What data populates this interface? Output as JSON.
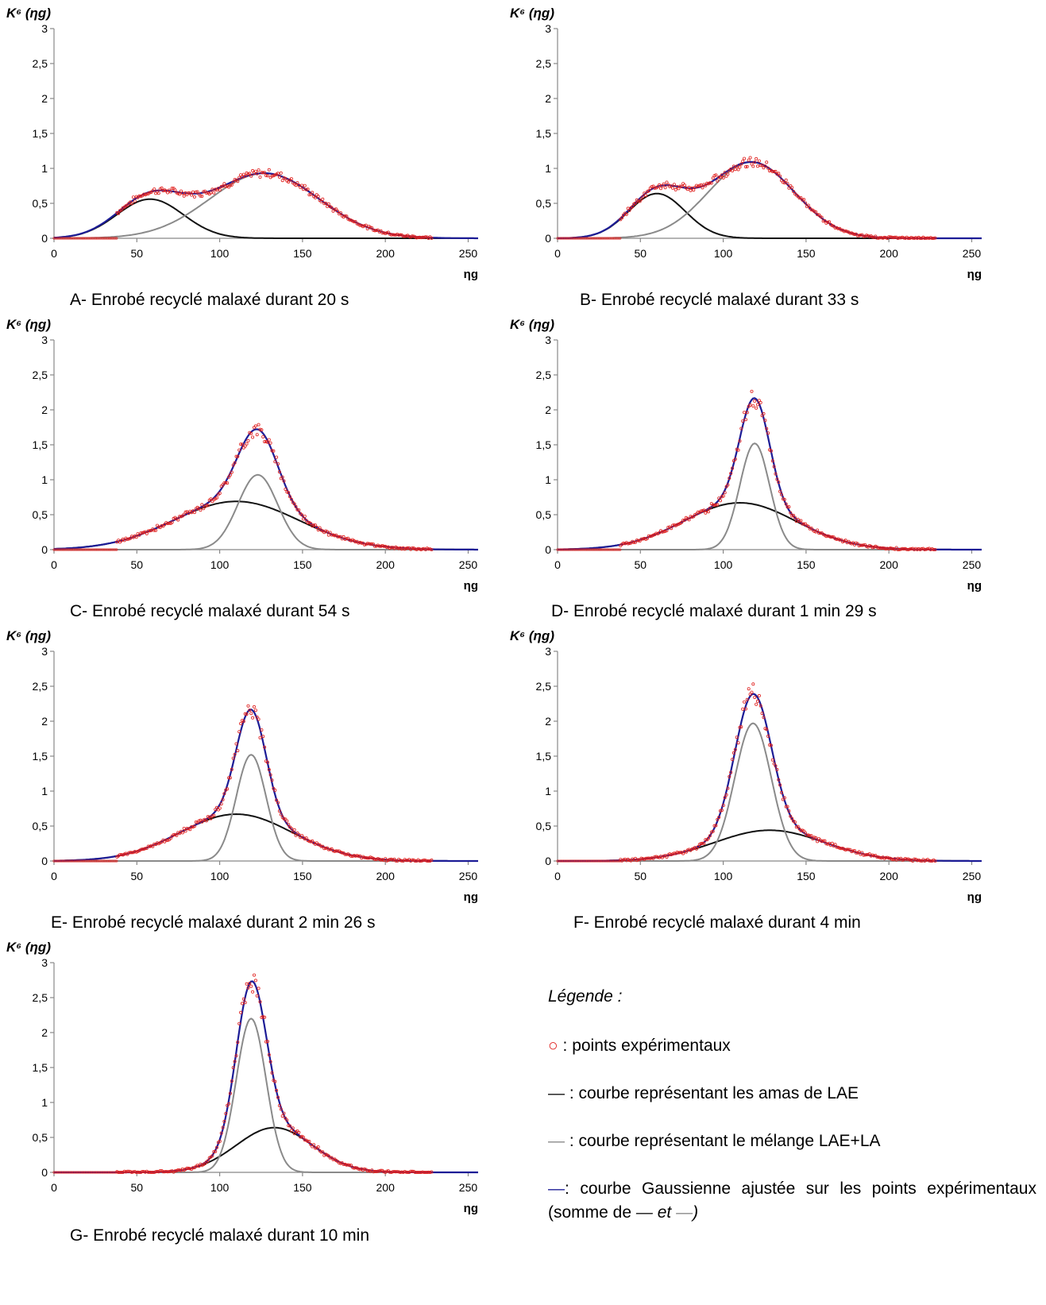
{
  "colors": {
    "points": "#e0201e",
    "lae_curve": "#111111",
    "mix_curve": "#8a8a8a",
    "fit_curve": "#1c1c96",
    "axis": "#888888"
  },
  "chart_data": [
    {
      "type": "line",
      "ylabel": "K⁶ (ηg)",
      "xlabel": "ηg",
      "xlim": [
        0,
        256
      ],
      "ylim": [
        0,
        3
      ],
      "xticks": [
        0,
        50,
        100,
        150,
        200,
        250
      ],
      "xtick_labels": [
        "0",
        "50",
        "100",
        "150",
        "200",
        "250"
      ],
      "yticks": [
        0,
        0.5,
        1,
        1.5,
        2,
        2.5,
        3
      ],
      "ytick_labels": [
        "0",
        "0,5",
        "1",
        "1,5",
        "2",
        "2,5",
        "3"
      ],
      "caption": "A- Enrobé recyclé malaxé durant 20 s",
      "components": [
        {
          "amplitude": 0.56,
          "center": 58,
          "sigma": 20
        },
        {
          "amplitude": 0.93,
          "center": 127,
          "sigma": 33
        }
      ],
      "points_x_range": [
        38,
        228
      ]
    },
    {
      "type": "line",
      "ylabel": "K⁶ (ηg)",
      "xlabel": "ηg",
      "xlim": [
        0,
        256
      ],
      "ylim": [
        0,
        3
      ],
      "xticks": [
        0,
        50,
        100,
        150,
        200,
        250
      ],
      "xtick_labels": [
        "0",
        "50",
        "100",
        "150",
        "200",
        "250"
      ],
      "yticks": [
        0,
        0.5,
        1,
        1.5,
        2,
        2.5,
        3
      ],
      "ytick_labels": [
        "0",
        "0,5",
        "1",
        "1,5",
        "2",
        "2,5",
        "3"
      ],
      "caption": "B- Enrobé recyclé malaxé durant 33 s",
      "components": [
        {
          "amplitude": 0.64,
          "center": 60,
          "sigma": 17
        },
        {
          "amplitude": 1.09,
          "center": 117,
          "sigma": 26
        }
      ],
      "points_x_range": [
        38,
        228
      ]
    },
    {
      "type": "line",
      "ylabel": "K⁶ (ηg)",
      "xlabel": "ηg",
      "xlim": [
        0,
        256
      ],
      "ylim": [
        0,
        3
      ],
      "xticks": [
        0,
        50,
        100,
        150,
        200,
        250
      ],
      "xtick_labels": [
        "0",
        "50",
        "100",
        "150",
        "200",
        "250"
      ],
      "yticks": [
        0,
        0.5,
        1,
        1.5,
        2,
        2.5,
        3
      ],
      "ytick_labels": [
        "0",
        "0,5",
        "1",
        "1,5",
        "2",
        "2,5",
        "3"
      ],
      "caption": "C- Enrobé recyclé malaxé durant 54 s",
      "components": [
        {
          "amplitude": 0.69,
          "center": 110,
          "sigma": 38
        },
        {
          "amplitude": 1.07,
          "center": 123,
          "sigma": 12
        }
      ],
      "points_x_range": [
        38,
        228
      ]
    },
    {
      "type": "line",
      "ylabel": "K⁶ (ηg)",
      "xlabel": "ηg",
      "xlim": [
        0,
        256
      ],
      "ylim": [
        0,
        3
      ],
      "xticks": [
        0,
        50,
        100,
        150,
        200,
        250
      ],
      "xtick_labels": [
        "0",
        "50",
        "100",
        "150",
        "200",
        "250"
      ],
      "yticks": [
        0,
        0.5,
        1,
        1.5,
        2,
        2.5,
        3
      ],
      "ytick_labels": [
        "0",
        "0,5",
        "1",
        "1,5",
        "2",
        "2,5",
        "3"
      ],
      "caption": "D- Enrobé recyclé malaxé durant 1 min 29 s",
      "components": [
        {
          "amplitude": 0.67,
          "center": 110,
          "sigma": 34
        },
        {
          "amplitude": 1.52,
          "center": 119,
          "sigma": 9
        }
      ],
      "points_x_range": [
        38,
        228
      ]
    },
    {
      "type": "line",
      "ylabel": "K⁶ (ηg)",
      "xlabel": "ηg",
      "xlim": [
        0,
        256
      ],
      "ylim": [
        0,
        3
      ],
      "xticks": [
        0,
        50,
        100,
        150,
        200,
        250
      ],
      "xtick_labels": [
        "0",
        "50",
        "100",
        "150",
        "200",
        "250"
      ],
      "yticks": [
        0,
        0.5,
        1,
        1.5,
        2,
        2.5,
        3
      ],
      "ytick_labels": [
        "0",
        "0,5",
        "1",
        "1,5",
        "2",
        "2,5",
        "3"
      ],
      "caption": "E- Enrobé recyclé malaxé durant 2 min 26 s",
      "components": [
        {
          "amplitude": 0.67,
          "center": 110,
          "sigma": 34
        },
        {
          "amplitude": 1.52,
          "center": 119,
          "sigma": 9
        }
      ],
      "points_x_range": [
        38,
        228
      ]
    },
    {
      "type": "line",
      "ylabel": "K⁶ (ηg)",
      "xlabel": "ηg",
      "xlim": [
        0,
        256
      ],
      "ylim": [
        0,
        3
      ],
      "xticks": [
        0,
        50,
        100,
        150,
        200,
        250
      ],
      "xtick_labels": [
        "0",
        "50",
        "100",
        "150",
        "200",
        "250"
      ],
      "yticks": [
        0,
        0.5,
        1,
        1.5,
        2,
        2.5,
        3
      ],
      "ytick_labels": [
        "0",
        "0,5",
        "1",
        "1,5",
        "2",
        "2,5",
        "3"
      ],
      "caption": "F- Enrobé recyclé malaxé durant 4 min",
      "components": [
        {
          "amplitude": 0.44,
          "center": 128,
          "sigma": 33
        },
        {
          "amplitude": 1.97,
          "center": 118,
          "sigma": 11
        }
      ],
      "points_x_range": [
        38,
        228
      ]
    },
    {
      "type": "line",
      "ylabel": "K⁶ (ηg)",
      "xlabel": "ηg",
      "xlim": [
        0,
        256
      ],
      "ylim": [
        0,
        3
      ],
      "xticks": [
        0,
        50,
        100,
        150,
        200,
        250
      ],
      "xtick_labels": [
        "0",
        "50",
        "100",
        "150",
        "200",
        "250"
      ],
      "yticks": [
        0,
        0.5,
        1,
        1.5,
        2,
        2.5,
        3
      ],
      "ytick_labels": [
        "0",
        "0,5",
        "1",
        "1,5",
        "2",
        "2,5",
        "3"
      ],
      "caption": "G- Enrobé recyclé malaxé durant 10 min",
      "components": [
        {
          "amplitude": 0.64,
          "center": 133,
          "sigma": 23
        },
        {
          "amplitude": 2.2,
          "center": 119,
          "sigma": 9
        }
      ],
      "points_x_range": [
        38,
        228
      ]
    }
  ],
  "legend": {
    "title": "Légende :",
    "points_symbol": "○",
    "points_text": " : points expérimentaux",
    "lae_symbol": "—",
    "lae_text": " : courbe représentant les amas de LAE",
    "mix_symbol": "—",
    "mix_text": " : courbe représentant le mélange LAE+LA",
    "fit_symbol": "—",
    "fit_text": ": courbe Gaussienne ajustée sur les points expérimentaux (somme de ",
    "fit_sym_a": "—",
    "fit_and": " et ",
    "fit_sym_b": "—",
    "fit_close": ")"
  }
}
